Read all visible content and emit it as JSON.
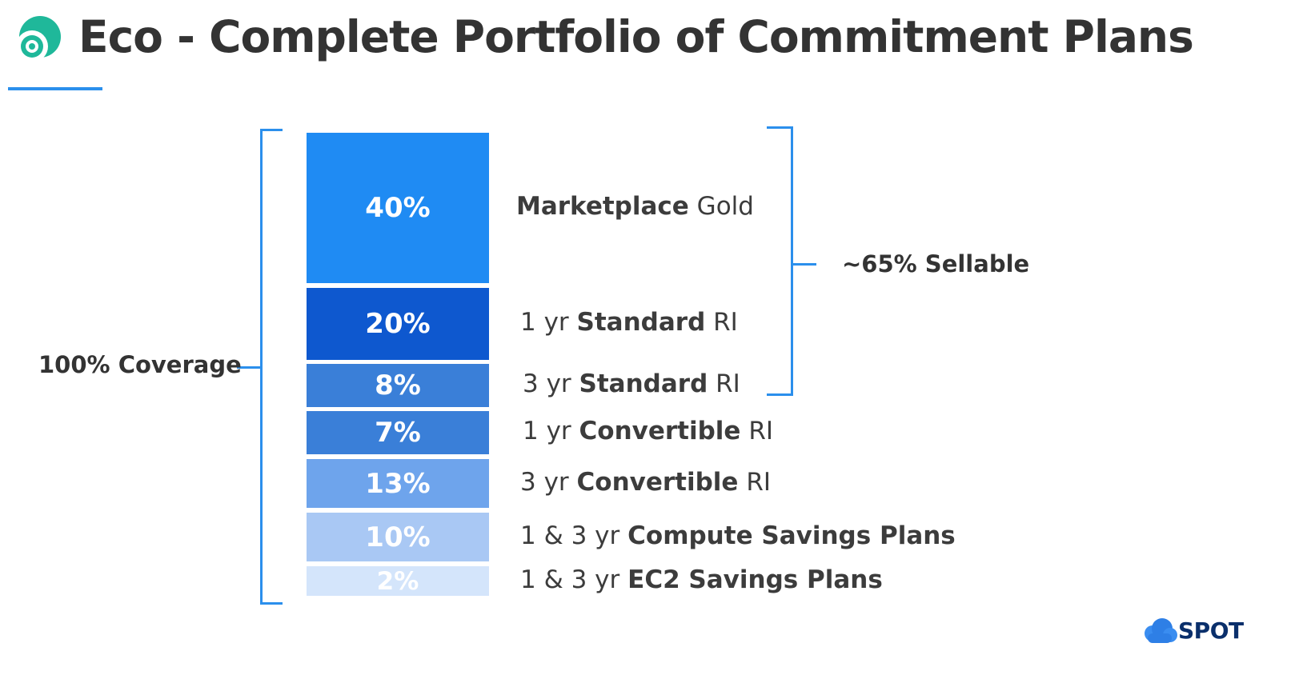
{
  "slide": {
    "title": "Eco - Complete Portfolio of Commitment Plans",
    "left_bracket_label": "100% Coverage",
    "right_bracket_label": "~65% Sellable",
    "brand": "SPOT"
  },
  "chart_data": {
    "type": "stacked-bar",
    "title": "Eco - Complete Portfolio of Commitment Plans",
    "unit": "%",
    "segments": [
      {
        "value": 40,
        "display": "40%",
        "prefix": "",
        "bold": "Marketplace",
        "suffix": " Gold",
        "color": "#1f8bf3"
      },
      {
        "value": 20,
        "display": "20%",
        "prefix": "1 yr ",
        "bold": "Standard",
        "suffix": " RI",
        "color": "#0e58cf"
      },
      {
        "value": 8,
        "display": "8%",
        "prefix": "3 yr ",
        "bold": "Standard",
        "suffix": " RI",
        "color": "#3a7fd8"
      },
      {
        "value": 7,
        "display": "7%",
        "prefix": "1 yr ",
        "bold": "Convertible",
        "suffix": " RI",
        "color": "#3a7fd8"
      },
      {
        "value": 13,
        "display": "13%",
        "prefix": "3 yr ",
        "bold": "Convertible",
        "suffix": " RI",
        "color": "#6ea4ec"
      },
      {
        "value": 10,
        "display": "10%",
        "prefix": "1 & 3 yr ",
        "bold": "Compute Savings Plans",
        "suffix": "",
        "color": "#a9c8f4"
      },
      {
        "value": 2,
        "display": "2%",
        "prefix": "1 & 3 yr ",
        "bold": "EC2 Savings Plans",
        "suffix": "",
        "color": "#d4e5fb"
      }
    ]
  }
}
